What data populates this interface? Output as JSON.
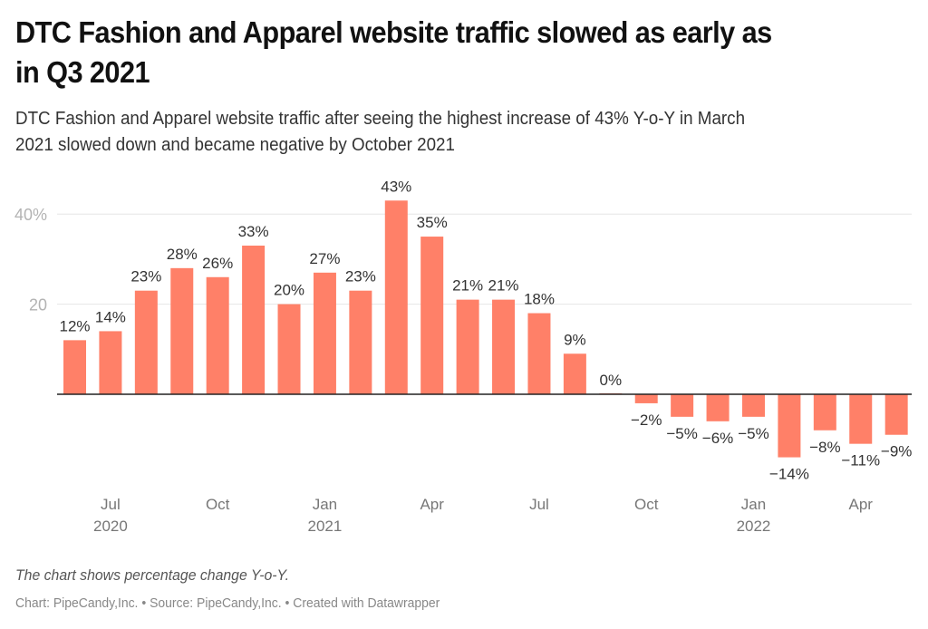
{
  "header": {
    "title_lines": [
      "DTC Fashion and Apparel website traffic slowed as early as",
      "in Q3 2021"
    ],
    "subtitle_lines": [
      "DTC Fashion and Apparel website traffic after seeing the highest increase of 43% Y-o-Y in March",
      "2021 slowed down and became negative by October 2021"
    ]
  },
  "footer": {
    "note": "The chart shows percentage change Y-o-Y.",
    "chart_credit": "Chart: PipeCandy,Inc.",
    "separator": " • ",
    "source_credit": "Source: PipeCandy,Inc.",
    "tool_credit": "Created with Datawrapper"
  },
  "colors": {
    "bar": "#ff8068",
    "gridline": "#e6e6e6",
    "baseline": "#222222",
    "tick_label": "#b3b3b3",
    "axis_label": "#777777",
    "value_label": "#333333"
  },
  "chart_data": {
    "type": "bar",
    "title": "DTC Fashion and Apparel website traffic slowed as early as in Q3 2021",
    "subtitle": "DTC Fashion and Apparel website traffic after seeing the highest increase of 43% Y-o-Y in March 2021 slowed down and became negative by October 2021",
    "xlabel": "",
    "ylabel": "",
    "unit": "% change Y-o-Y",
    "ylim": [
      -20,
      45
    ],
    "grid": true,
    "legend": "none",
    "y_ticks": [
      {
        "value": 20,
        "label": "20"
      },
      {
        "value": 40,
        "label": "40%"
      }
    ],
    "categories": [
      "Jun 2020",
      "Jul 2020",
      "Aug 2020",
      "Sep 2020",
      "Oct 2020",
      "Nov 2020",
      "Dec 2020",
      "Jan 2021",
      "Feb 2021",
      "Mar 2021",
      "Apr 2021",
      "May 2021",
      "Jun 2021",
      "Jul 2021",
      "Aug 2021",
      "Sep 2021",
      "Oct 2021",
      "Nov 2021",
      "Dec 2021",
      "Jan 2022",
      "Feb 2022",
      "Mar 2022",
      "Apr 2022",
      "May 2022"
    ],
    "values": [
      12,
      14,
      23,
      28,
      26,
      33,
      20,
      27,
      23,
      43,
      35,
      21,
      21,
      18,
      9,
      0,
      -2,
      -5,
      -6,
      -5,
      -14,
      -8,
      -11,
      -9
    ],
    "value_labels": [
      "12%",
      "14%",
      "23%",
      "28%",
      "26%",
      "33%",
      "20%",
      "27%",
      "23%",
      "43%",
      "35%",
      "21%",
      "21%",
      "18%",
      "9%",
      "0%",
      "−2%",
      "−5%",
      "−6%",
      "−5%",
      "−14%",
      "−8%",
      "−11%",
      "−9%"
    ],
    "x_ticks": [
      {
        "index": 1,
        "label": "Jul",
        "year": "2020"
      },
      {
        "index": 4,
        "label": "Oct",
        "year": ""
      },
      {
        "index": 7,
        "label": "Jan",
        "year": "2021"
      },
      {
        "index": 10,
        "label": "Apr",
        "year": ""
      },
      {
        "index": 13,
        "label": "Jul",
        "year": ""
      },
      {
        "index": 16,
        "label": "Oct",
        "year": ""
      },
      {
        "index": 19,
        "label": "Jan",
        "year": "2022"
      },
      {
        "index": 22,
        "label": "Apr",
        "year": ""
      }
    ]
  }
}
